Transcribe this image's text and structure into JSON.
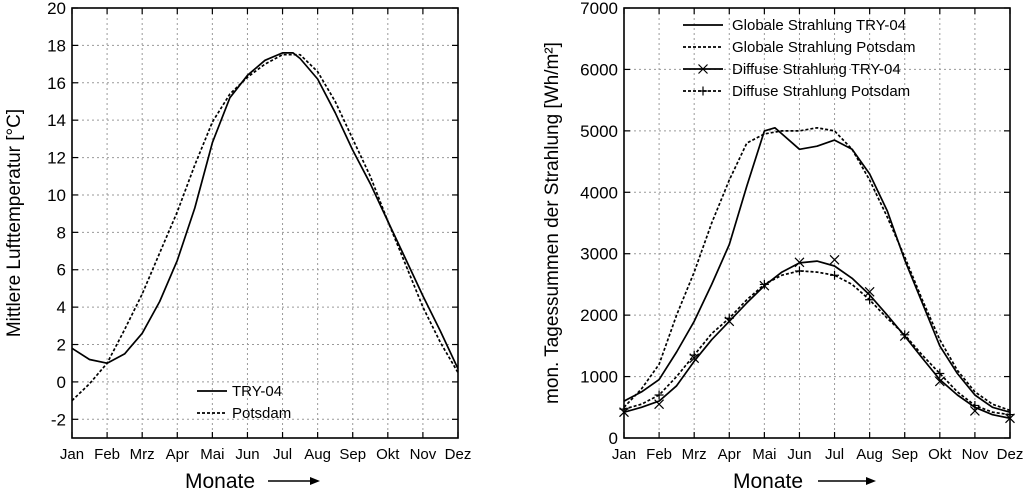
{
  "chart_data": [
    {
      "type": "line",
      "title": "",
      "xlabel": "Monate",
      "xlabel_arrow": "→",
      "ylabel": "Mittlere Lufttemperatur [°C]",
      "categories": [
        "Jan",
        "Feb",
        "Mrz",
        "Apr",
        "Mai",
        "Jun",
        "Jul",
        "Aug",
        "Sep",
        "Okt",
        "Nov",
        "Dez"
      ],
      "xlim": [
        1,
        12
      ],
      "ylim": [
        -3,
        20
      ],
      "yticks": [
        -2,
        0,
        2,
        4,
        6,
        8,
        10,
        12,
        14,
        16,
        18,
        20
      ],
      "grid": true,
      "legend_position": "bottom-center",
      "series": [
        {
          "name": "TRY-04",
          "style": "solid",
          "points": [
            [
              1.0,
              1.8
            ],
            [
              1.5,
              1.2
            ],
            [
              2.0,
              1.0
            ],
            [
              2.5,
              1.5
            ],
            [
              3.0,
              2.6
            ],
            [
              3.5,
              4.3
            ],
            [
              4.0,
              6.5
            ],
            [
              4.5,
              9.3
            ],
            [
              5.0,
              12.8
            ],
            [
              5.5,
              15.2
            ],
            [
              6.0,
              16.4
            ],
            [
              6.5,
              17.2
            ],
            [
              7.0,
              17.6
            ],
            [
              7.3,
              17.6
            ],
            [
              7.5,
              17.3
            ],
            [
              8.0,
              16.2
            ],
            [
              8.5,
              14.4
            ],
            [
              9.0,
              12.4
            ],
            [
              9.5,
              10.6
            ],
            [
              10.0,
              8.6
            ],
            [
              10.5,
              6.6
            ],
            [
              11.0,
              4.6
            ],
            [
              11.5,
              2.7
            ],
            [
              12.0,
              0.7
            ]
          ]
        },
        {
          "name": "Potsdam",
          "style": "dashed",
          "points": [
            [
              1.0,
              -1.0
            ],
            [
              1.5,
              -0.1
            ],
            [
              2.0,
              1.0
            ],
            [
              2.5,
              2.8
            ],
            [
              3.0,
              4.7
            ],
            [
              3.5,
              6.9
            ],
            [
              4.0,
              9.1
            ],
            [
              4.5,
              11.6
            ],
            [
              5.0,
              13.9
            ],
            [
              5.5,
              15.4
            ],
            [
              6.0,
              16.3
            ],
            [
              6.5,
              17.0
            ],
            [
              7.0,
              17.5
            ],
            [
              7.5,
              17.5
            ],
            [
              8.0,
              16.6
            ],
            [
              8.5,
              15.0
            ],
            [
              9.0,
              13.0
            ],
            [
              9.5,
              11.0
            ],
            [
              10.0,
              8.6
            ],
            [
              10.5,
              6.3
            ],
            [
              11.0,
              4.0
            ],
            [
              11.5,
              2.1
            ],
            [
              12.0,
              0.5
            ]
          ]
        }
      ]
    },
    {
      "type": "line",
      "title": "",
      "xlabel": "Monate",
      "xlabel_arrow": "→",
      "ylabel": "mon. Tagessummen der Strahlung [Wh/m²]",
      "categories": [
        "Jan",
        "Feb",
        "Mrz",
        "Apr",
        "Mai",
        "Jun",
        "Jul",
        "Aug",
        "Sep",
        "Okt",
        "Nov",
        "Dez"
      ],
      "xlim": [
        1,
        12
      ],
      "ylim": [
        0,
        7000
      ],
      "yticks": [
        0,
        1000,
        2000,
        3000,
        4000,
        5000,
        6000,
        7000
      ],
      "grid": true,
      "legend_position": "top-center",
      "series": [
        {
          "name": "Globale Strahlung TRY-04",
          "style": "solid",
          "marker": "none",
          "points": [
            [
              1.0,
              600
            ],
            [
              1.5,
              750
            ],
            [
              2.0,
              950
            ],
            [
              2.5,
              1400
            ],
            [
              3.0,
              1900
            ],
            [
              3.5,
              2500
            ],
            [
              4.0,
              3150
            ],
            [
              4.5,
              4100
            ],
            [
              5.0,
              5000
            ],
            [
              5.3,
              5050
            ],
            [
              5.5,
              4950
            ],
            [
              6.0,
              4700
            ],
            [
              6.5,
              4750
            ],
            [
              7.0,
              4850
            ],
            [
              7.5,
              4700
            ],
            [
              8.0,
              4300
            ],
            [
              8.5,
              3700
            ],
            [
              9.0,
              2900
            ],
            [
              9.5,
              2200
            ],
            [
              10.0,
              1500
            ],
            [
              10.5,
              1050
            ],
            [
              11.0,
              700
            ],
            [
              11.5,
              500
            ],
            [
              12.0,
              420
            ]
          ]
        },
        {
          "name": "Globale Strahlung Potsdam",
          "style": "dashed",
          "marker": "none",
          "points": [
            [
              1.0,
              500
            ],
            [
              1.5,
              800
            ],
            [
              2.0,
              1200
            ],
            [
              2.5,
              2000
            ],
            [
              3.0,
              2700
            ],
            [
              3.5,
              3500
            ],
            [
              4.0,
              4200
            ],
            [
              4.5,
              4800
            ],
            [
              5.0,
              4950
            ],
            [
              5.5,
              5000
            ],
            [
              6.0,
              5000
            ],
            [
              6.5,
              5050
            ],
            [
              7.0,
              5000
            ],
            [
              7.5,
              4700
            ],
            [
              8.0,
              4200
            ],
            [
              8.5,
              3600
            ],
            [
              9.0,
              2950
            ],
            [
              9.5,
              2250
            ],
            [
              10.0,
              1600
            ],
            [
              10.5,
              1100
            ],
            [
              11.0,
              750
            ],
            [
              11.5,
              550
            ],
            [
              12.0,
              450
            ]
          ]
        },
        {
          "name": "Diffuse Strahlung TRY-04",
          "style": "solid",
          "marker": "x",
          "points": [
            [
              1.0,
              420
            ],
            [
              1.5,
              500
            ],
            [
              2.0,
              600
            ],
            [
              2.5,
              850
            ],
            [
              3.0,
              1250
            ],
            [
              3.5,
              1600
            ],
            [
              4.0,
              1900
            ],
            [
              4.5,
              2200
            ],
            [
              5.0,
              2480
            ],
            [
              5.5,
              2700
            ],
            [
              6.0,
              2850
            ],
            [
              6.5,
              2880
            ],
            [
              7.0,
              2800
            ],
            [
              7.5,
              2600
            ],
            [
              8.0,
              2330
            ],
            [
              8.5,
              2000
            ],
            [
              9.0,
              1660
            ],
            [
              9.5,
              1300
            ],
            [
              10.0,
              950
            ],
            [
              10.5,
              700
            ],
            [
              11.0,
              500
            ],
            [
              11.5,
              380
            ],
            [
              12.0,
              320
            ]
          ],
          "markers": [
            [
              1.0,
              420
            ],
            [
              2.0,
              550
            ],
            [
              3.0,
              1300
            ],
            [
              4.0,
              1900
            ],
            [
              5.0,
              2480
            ],
            [
              6.0,
              2860
            ],
            [
              7.0,
              2900
            ],
            [
              8.0,
              2380
            ],
            [
              9.0,
              1660
            ],
            [
              10.0,
              920
            ],
            [
              11.0,
              440
            ],
            [
              12.0,
              320
            ]
          ]
        },
        {
          "name": "Diffuse Strahlung Potsdam",
          "style": "dashed",
          "marker": "+",
          "points": [
            [
              1.0,
              470
            ],
            [
              1.5,
              550
            ],
            [
              2.0,
              700
            ],
            [
              2.5,
              1000
            ],
            [
              3.0,
              1350
            ],
            [
              3.5,
              1700
            ],
            [
              4.0,
              1950
            ],
            [
              4.5,
              2250
            ],
            [
              5.0,
              2500
            ],
            [
              5.5,
              2650
            ],
            [
              6.0,
              2720
            ],
            [
              6.5,
              2700
            ],
            [
              7.0,
              2650
            ],
            [
              7.5,
              2500
            ],
            [
              8.0,
              2250
            ],
            [
              8.5,
              1950
            ],
            [
              9.0,
              1680
            ],
            [
              9.5,
              1350
            ],
            [
              10.0,
              1050
            ],
            [
              10.5,
              750
            ],
            [
              11.0,
              530
            ],
            [
              11.5,
              420
            ],
            [
              12.0,
              380
            ]
          ],
          "markers": [
            [
              1.0,
              470
            ],
            [
              2.0,
              700
            ],
            [
              3.0,
              1350
            ],
            [
              4.0,
              1950
            ],
            [
              5.0,
              2500
            ],
            [
              6.0,
              2720
            ],
            [
              7.0,
              2650
            ],
            [
              8.0,
              2250
            ],
            [
              9.0,
              1680
            ],
            [
              10.0,
              1050
            ],
            [
              11.0,
              530
            ],
            [
              12.0,
              380
            ]
          ]
        }
      ]
    }
  ]
}
